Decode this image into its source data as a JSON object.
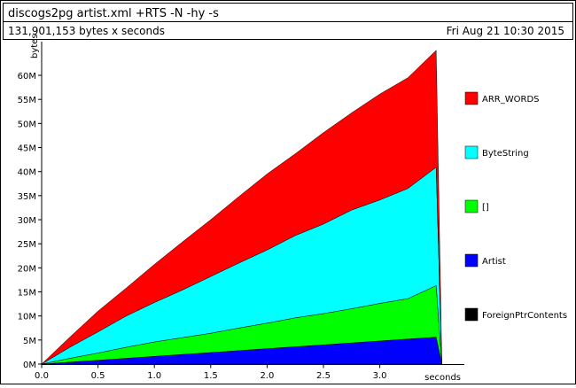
{
  "header": {
    "command": "discogs2pg artist.xml +RTS -N -hy -s",
    "total": "131,901,153 bytes x seconds",
    "date": "Fri Aug 21 10:30 2015"
  },
  "chart_data": {
    "type": "area",
    "stacked": true,
    "xlabel": "seconds",
    "ylabel": "bytes",
    "xlim": [
      0,
      3.75
    ],
    "ylim": [
      0,
      67
    ],
    "x_ticks": [
      "0.0",
      "0.5",
      "1.0",
      "1.5",
      "2.0",
      "2.5",
      "3.0"
    ],
    "x_tick_values": [
      0,
      0.5,
      1.0,
      1.5,
      2.0,
      2.5,
      3.0
    ],
    "y_ticks": [
      "0M",
      "5M",
      "10M",
      "15M",
      "20M",
      "25M",
      "30M",
      "35M",
      "40M",
      "45M",
      "50M",
      "55M",
      "60M"
    ],
    "y_tick_values": [
      0,
      5,
      10,
      15,
      20,
      25,
      30,
      35,
      40,
      45,
      50,
      55,
      60
    ],
    "x": [
      0,
      0.25,
      0.5,
      0.75,
      1.0,
      1.25,
      1.5,
      1.75,
      2.0,
      2.25,
      2.5,
      2.75,
      3.0,
      3.25,
      3.5,
      3.55
    ],
    "series": [
      {
        "name": "ForeignPtrContents",
        "color": "#000000",
        "values": [
          0,
          0,
          0,
          0,
          0,
          0,
          0,
          0,
          0,
          0,
          0,
          0,
          0,
          0,
          0,
          0
        ]
      },
      {
        "name": "Artist",
        "color": "#0000ff",
        "values": [
          0,
          0.4,
          0.8,
          1.2,
          1.6,
          2.0,
          2.4,
          2.8,
          3.2,
          3.6,
          4.0,
          4.4,
          4.8,
          5.2,
          5.6,
          0
        ]
      },
      {
        "name": "[]",
        "color": "#00ff00",
        "values": [
          0,
          0.8,
          1.5,
          2.3,
          3.0,
          3.5,
          4.0,
          4.7,
          5.3,
          6.0,
          6.5,
          7.1,
          7.8,
          8.4,
          10.7,
          0
        ]
      },
      {
        "name": "ByteString",
        "color": "#00ffff",
        "values": [
          0,
          2.3,
          4.4,
          6.5,
          8.2,
          9.9,
          11.8,
          13.5,
          15.2,
          17.1,
          18.6,
          20.5,
          21.5,
          22.9,
          24.6,
          0
        ]
      },
      {
        "name": "ARR_WORDS",
        "color": "#ff0000",
        "values": [
          0,
          2.1,
          4.3,
          5.8,
          7.9,
          10.0,
          11.8,
          13.8,
          15.8,
          17.0,
          19.0,
          20.2,
          22.0,
          23.0,
          24.3,
          0
        ]
      }
    ],
    "legend": {
      "placement": "right",
      "order": [
        "ARR_WORDS",
        "ByteString",
        "[]",
        "Artist",
        "ForeignPtrContents"
      ]
    }
  }
}
